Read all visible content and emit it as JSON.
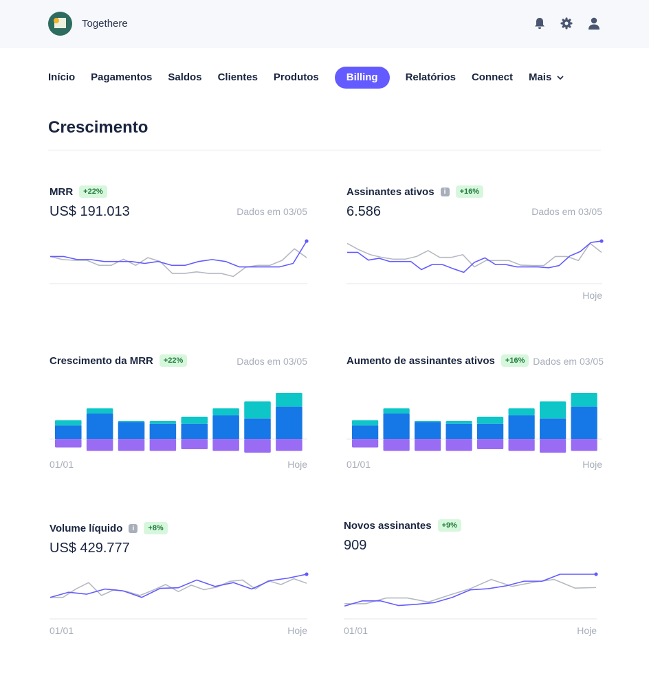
{
  "app": {
    "name": "Togethere"
  },
  "header_icons": {
    "notifications": "bell-icon",
    "settings": "gear-icon",
    "account": "user-icon"
  },
  "nav": {
    "items": [
      {
        "label": "Início"
      },
      {
        "label": "Pagamentos"
      },
      {
        "label": "Saldos"
      },
      {
        "label": "Clientes"
      },
      {
        "label": "Produtos"
      },
      {
        "label": "Billing",
        "active": true
      },
      {
        "label": "Relatórios"
      },
      {
        "label": "Connect"
      }
    ],
    "more": "Mais"
  },
  "page": {
    "title": "Crescimento"
  },
  "colors": {
    "accent": "#635bff",
    "gray_line": "#b5b9c1",
    "bar_teal": "#0ec6c8",
    "bar_blue": "#1677e6",
    "bar_purple": "#9a6bf3",
    "badge_bg": "#d7f7dd",
    "badge_text": "#217a3c"
  },
  "cards": {
    "mrr": {
      "title": "MRR",
      "badge": "+22%",
      "value": "US$ 191.013",
      "meta": "Dados em 03/05"
    },
    "active_subscribers": {
      "title": "Assinantes ativos",
      "badge": "+16%",
      "value": "6.586",
      "meta": "Dados em 03/05",
      "end_label": "Hoje"
    },
    "mrr_growth": {
      "title": "Crescimento da MRR",
      "badge": "+22%",
      "meta": "Dados em 03/05",
      "start_label": "01/01",
      "end_label": "Hoje"
    },
    "subscriber_growth": {
      "title": "Aumento de assinantes ativos",
      "badge": "+16%",
      "meta": "Dados em 03/05",
      "start_label": "01/01",
      "end_label": "Hoje"
    },
    "net_volume": {
      "title": "Volume líquido",
      "badge": "+8%",
      "value": "US$ 429.777",
      "start_label": "01/01",
      "end_label": "Hoje"
    },
    "new_subscribers": {
      "title": "Novos assinantes",
      "badge": "+9%",
      "value": "909",
      "start_label": "01/01",
      "end_label": "Hoje"
    }
  },
  "chart_data": [
    {
      "id": "mrr",
      "type": "line",
      "series": [
        {
          "values": [
            60,
            60,
            52,
            52,
            47,
            47,
            47,
            42,
            47,
            37,
            37,
            47,
            52,
            47,
            33,
            33,
            33,
            33,
            42,
            100
          ]
        },
        {
          "values": [
            60,
            52,
            50,
            50,
            37,
            37,
            53,
            37,
            57,
            47,
            16,
            16,
            20,
            16,
            16,
            8,
            32,
            37,
            37,
            50,
            80,
            57
          ]
        }
      ],
      "grid": false
    },
    {
      "id": "active_subscribers",
      "type": "line",
      "series": [
        {
          "values": [
            60,
            60,
            43,
            47,
            40,
            40,
            40,
            22,
            33,
            33,
            24,
            16,
            38,
            48,
            33,
            33,
            28,
            28,
            28,
            26,
            31,
            52,
            62,
            82,
            85
          ]
        },
        {
          "values": [
            80,
            66,
            55,
            49,
            45,
            45,
            51,
            64,
            49,
            49,
            55,
            28,
            42,
            42,
            42,
            32,
            31,
            31,
            51,
            51,
            42,
            80,
            60
          ]
        }
      ],
      "grid": false
    },
    {
      "id": "mrr_growth",
      "type": "bar",
      "stacked": true,
      "categories": [
        "1",
        "2",
        "3",
        "4",
        "5",
        "6",
        "7",
        "8"
      ],
      "series": [
        {
          "name": "positive_blue",
          "values": [
            8,
            15,
            10,
            9,
            9,
            14,
            12,
            19
          ]
        },
        {
          "name": "positive_teal",
          "values": [
            3,
            3,
            0.5,
            1.5,
            4,
            4,
            10,
            8
          ]
        },
        {
          "name": "negative_purple",
          "values": [
            -5,
            -7,
            -7,
            -7,
            -6,
            -7,
            -8,
            -7
          ]
        }
      ],
      "grid": false
    },
    {
      "id": "subscriber_growth",
      "type": "bar",
      "stacked": true,
      "categories": [
        "1",
        "2",
        "3",
        "4",
        "5",
        "6",
        "7",
        "8"
      ],
      "series": [
        {
          "name": "positive_blue",
          "values": [
            8,
            15,
            10,
            9,
            9,
            14,
            12,
            19
          ]
        },
        {
          "name": "positive_teal",
          "values": [
            3,
            3,
            0.5,
            1.5,
            4,
            4,
            10,
            8
          ]
        },
        {
          "name": "negative_purple",
          "values": [
            -5,
            -7,
            -7,
            -7,
            -6,
            -7,
            -8,
            -7
          ]
        }
      ],
      "grid": false
    },
    {
      "id": "net_volume",
      "type": "line",
      "series": [
        {
          "values": [
            27,
            35,
            32,
            40,
            37,
            27,
            41,
            42,
            54,
            44,
            50,
            40,
            53,
            57,
            63
          ]
        },
        {
          "values": [
            27,
            27,
            40,
            50,
            30,
            39,
            36,
            30,
            38,
            47,
            36,
            46,
            39,
            43,
            52,
            54,
            40,
            53,
            47,
            56,
            49
          ]
        }
      ],
      "grid": false
    },
    {
      "id": "new_subscribers",
      "type": "line",
      "series": [
        {
          "values": [
            15,
            24,
            24,
            16,
            18,
            21,
            30,
            43,
            45,
            50,
            58,
            58,
            70,
            70,
            70
          ]
        },
        {
          "values": [
            19,
            19,
            29,
            29,
            22,
            34,
            45,
            61,
            49,
            56,
            61,
            46,
            47
          ]
        }
      ],
      "grid": false
    }
  ]
}
